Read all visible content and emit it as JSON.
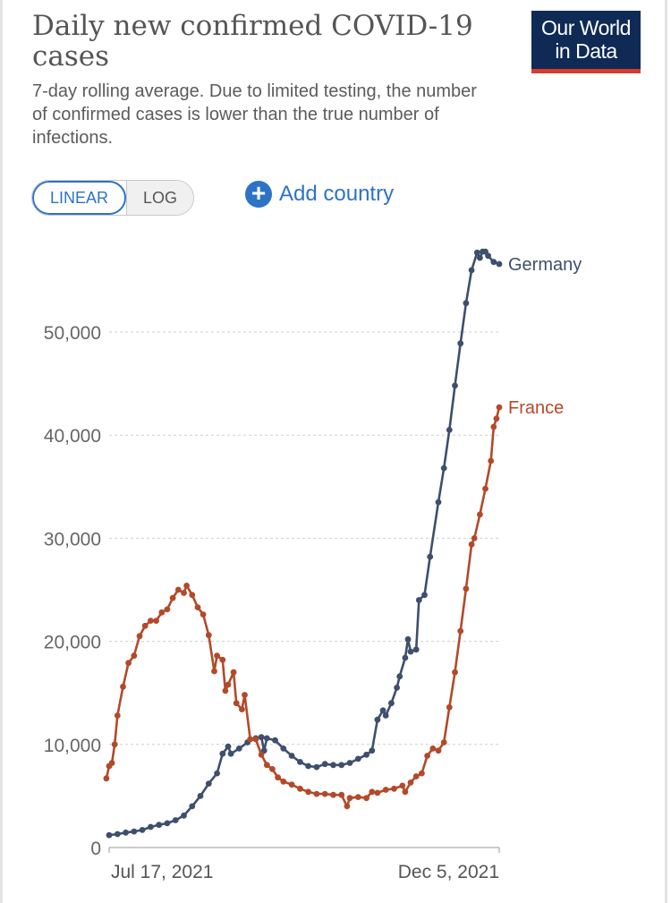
{
  "header": {
    "title": "Daily new confirmed COVID-19 cases",
    "subtitle": "7-day rolling average. Due to limited testing, the number of confirmed cases is lower than the true number of infections.",
    "logo_line1": "Our World",
    "logo_line2": "in Data"
  },
  "controls": {
    "linear_label": "LINEAR",
    "log_label": "LOG",
    "add_country_label": "Add country"
  },
  "colors": {
    "germany": "#3e4f6d",
    "france": "#b24a2a",
    "accent": "#2d73c5",
    "grid": "#cfcfcf"
  },
  "chart_data": {
    "type": "line",
    "title": "Daily new confirmed COVID-19 cases",
    "subtitle": "7-day rolling average. Due to limited testing, the number of confirmed cases is lower than the true number of infections.",
    "ylim": [
      0,
      60000
    ],
    "yticks": [
      0,
      10000,
      20000,
      30000,
      40000,
      50000
    ],
    "ytick_labels": [
      "0",
      "10,000",
      "20,000",
      "30,000",
      "40,000",
      "50,000"
    ],
    "x_start": "2021-07-17",
    "x_end": "2021-12-05",
    "xtick_labels": [
      "Jul 17, 2021",
      "Dec 5, 2021"
    ],
    "grid": true,
    "legend": "direct labels at line ends",
    "series": [
      {
        "name": "Germany",
        "points": [
          [
            "2021-07-17",
            1200
          ],
          [
            "2021-07-20",
            1300
          ],
          [
            "2021-07-23",
            1450
          ],
          [
            "2021-07-26",
            1550
          ],
          [
            "2021-07-29",
            1700
          ],
          [
            "2021-08-01",
            2000
          ],
          [
            "2021-08-04",
            2200
          ],
          [
            "2021-08-07",
            2350
          ],
          [
            "2021-08-10",
            2650
          ],
          [
            "2021-08-13",
            3100
          ],
          [
            "2021-08-16",
            4000
          ],
          [
            "2021-08-19",
            5000
          ],
          [
            "2021-08-22",
            6200
          ],
          [
            "2021-08-25",
            7200
          ],
          [
            "2021-08-27",
            9100
          ],
          [
            "2021-08-29",
            9800
          ],
          [
            "2021-08-30",
            9100
          ],
          [
            "2021-09-02",
            9600
          ],
          [
            "2021-09-05",
            10200
          ],
          [
            "2021-09-08",
            10600
          ],
          [
            "2021-09-10",
            10700
          ],
          [
            "2021-09-11",
            9400
          ],
          [
            "2021-09-12",
            10600
          ],
          [
            "2021-09-15",
            10400
          ],
          [
            "2021-09-18",
            9600
          ],
          [
            "2021-09-21",
            8900
          ],
          [
            "2021-09-24",
            8300
          ],
          [
            "2021-09-27",
            7900
          ],
          [
            "2021-09-30",
            7800
          ],
          [
            "2021-10-03",
            8100
          ],
          [
            "2021-10-06",
            8000
          ],
          [
            "2021-10-09",
            8000
          ],
          [
            "2021-10-12",
            8200
          ],
          [
            "2021-10-15",
            8600
          ],
          [
            "2021-10-18",
            9000
          ],
          [
            "2021-10-20",
            9400
          ],
          [
            "2021-10-22",
            12400
          ],
          [
            "2021-10-24",
            13300
          ],
          [
            "2021-10-25",
            12800
          ],
          [
            "2021-10-27",
            14000
          ],
          [
            "2021-10-29",
            15500
          ],
          [
            "2021-10-30",
            16600
          ],
          [
            "2021-11-01",
            18400
          ],
          [
            "2021-11-02",
            20200
          ],
          [
            "2021-11-03",
            19000
          ],
          [
            "2021-11-05",
            19200
          ],
          [
            "2021-11-06",
            24000
          ],
          [
            "2021-11-08",
            24500
          ],
          [
            "2021-11-10",
            28200
          ],
          [
            "2021-11-13",
            33500
          ],
          [
            "2021-11-15",
            36800
          ],
          [
            "2021-11-17",
            40500
          ],
          [
            "2021-11-19",
            44800
          ],
          [
            "2021-11-21",
            48900
          ],
          [
            "2021-11-23",
            52800
          ],
          [
            "2021-11-25",
            56000
          ],
          [
            "2021-11-27",
            57700
          ],
          [
            "2021-11-28",
            57200
          ],
          [
            "2021-11-29",
            57800
          ],
          [
            "2021-11-30",
            57800
          ],
          [
            "2021-12-01",
            57400
          ],
          [
            "2021-12-03",
            56800
          ],
          [
            "2021-12-05",
            56600
          ]
        ]
      },
      {
        "name": "France",
        "points": [
          [
            "2021-07-16",
            6700
          ],
          [
            "2021-07-17",
            7900
          ],
          [
            "2021-07-18",
            8200
          ],
          [
            "2021-07-19",
            10000
          ],
          [
            "2021-07-20",
            12800
          ],
          [
            "2021-07-22",
            15600
          ],
          [
            "2021-07-24",
            17900
          ],
          [
            "2021-07-26",
            18600
          ],
          [
            "2021-07-28",
            20500
          ],
          [
            "2021-07-30",
            21500
          ],
          [
            "2021-08-01",
            22000
          ],
          [
            "2021-08-03",
            22000
          ],
          [
            "2021-08-05",
            22800
          ],
          [
            "2021-08-07",
            23100
          ],
          [
            "2021-08-09",
            24200
          ],
          [
            "2021-08-11",
            25000
          ],
          [
            "2021-08-13",
            24700
          ],
          [
            "2021-08-14",
            25400
          ],
          [
            "2021-08-16",
            24500
          ],
          [
            "2021-08-18",
            23300
          ],
          [
            "2021-08-20",
            22600
          ],
          [
            "2021-08-22",
            20600
          ],
          [
            "2021-08-24",
            17100
          ],
          [
            "2021-08-25",
            18600
          ],
          [
            "2021-08-27",
            18200
          ],
          [
            "2021-08-28",
            15200
          ],
          [
            "2021-08-29",
            15800
          ],
          [
            "2021-08-31",
            17000
          ],
          [
            "2021-09-01",
            14000
          ],
          [
            "2021-09-03",
            13400
          ],
          [
            "2021-09-04",
            14800
          ],
          [
            "2021-09-06",
            10500
          ],
          [
            "2021-09-08",
            10500
          ],
          [
            "2021-09-10",
            9000
          ],
          [
            "2021-09-12",
            8000
          ],
          [
            "2021-09-14",
            7600
          ],
          [
            "2021-09-16",
            6800
          ],
          [
            "2021-09-18",
            6400
          ],
          [
            "2021-09-21",
            6100
          ],
          [
            "2021-09-24",
            5700
          ],
          [
            "2021-09-27",
            5400
          ],
          [
            "2021-09-30",
            5200
          ],
          [
            "2021-10-03",
            5200
          ],
          [
            "2021-10-06",
            5100
          ],
          [
            "2021-10-09",
            5100
          ],
          [
            "2021-10-11",
            4000
          ],
          [
            "2021-10-12",
            4800
          ],
          [
            "2021-10-15",
            4900
          ],
          [
            "2021-10-18",
            4800
          ],
          [
            "2021-10-20",
            5400
          ],
          [
            "2021-10-22",
            5300
          ],
          [
            "2021-10-25",
            5600
          ],
          [
            "2021-10-28",
            5700
          ],
          [
            "2021-10-31",
            6000
          ],
          [
            "2021-11-01",
            5400
          ],
          [
            "2021-11-03",
            6300
          ],
          [
            "2021-11-05",
            6900
          ],
          [
            "2021-11-07",
            7200
          ],
          [
            "2021-11-09",
            8900
          ],
          [
            "2021-11-11",
            9600
          ],
          [
            "2021-11-13",
            9400
          ],
          [
            "2021-11-15",
            10200
          ],
          [
            "2021-11-17",
            13600
          ],
          [
            "2021-11-19",
            17000
          ],
          [
            "2021-11-21",
            21000
          ],
          [
            "2021-11-23",
            25100
          ],
          [
            "2021-11-25",
            29400
          ],
          [
            "2021-11-26",
            30000
          ],
          [
            "2021-11-28",
            32300
          ],
          [
            "2021-11-30",
            34800
          ],
          [
            "2021-12-02",
            37500
          ],
          [
            "2021-12-03",
            40800
          ],
          [
            "2021-12-04",
            41600
          ],
          [
            "2021-12-05",
            42700
          ]
        ]
      }
    ]
  }
}
